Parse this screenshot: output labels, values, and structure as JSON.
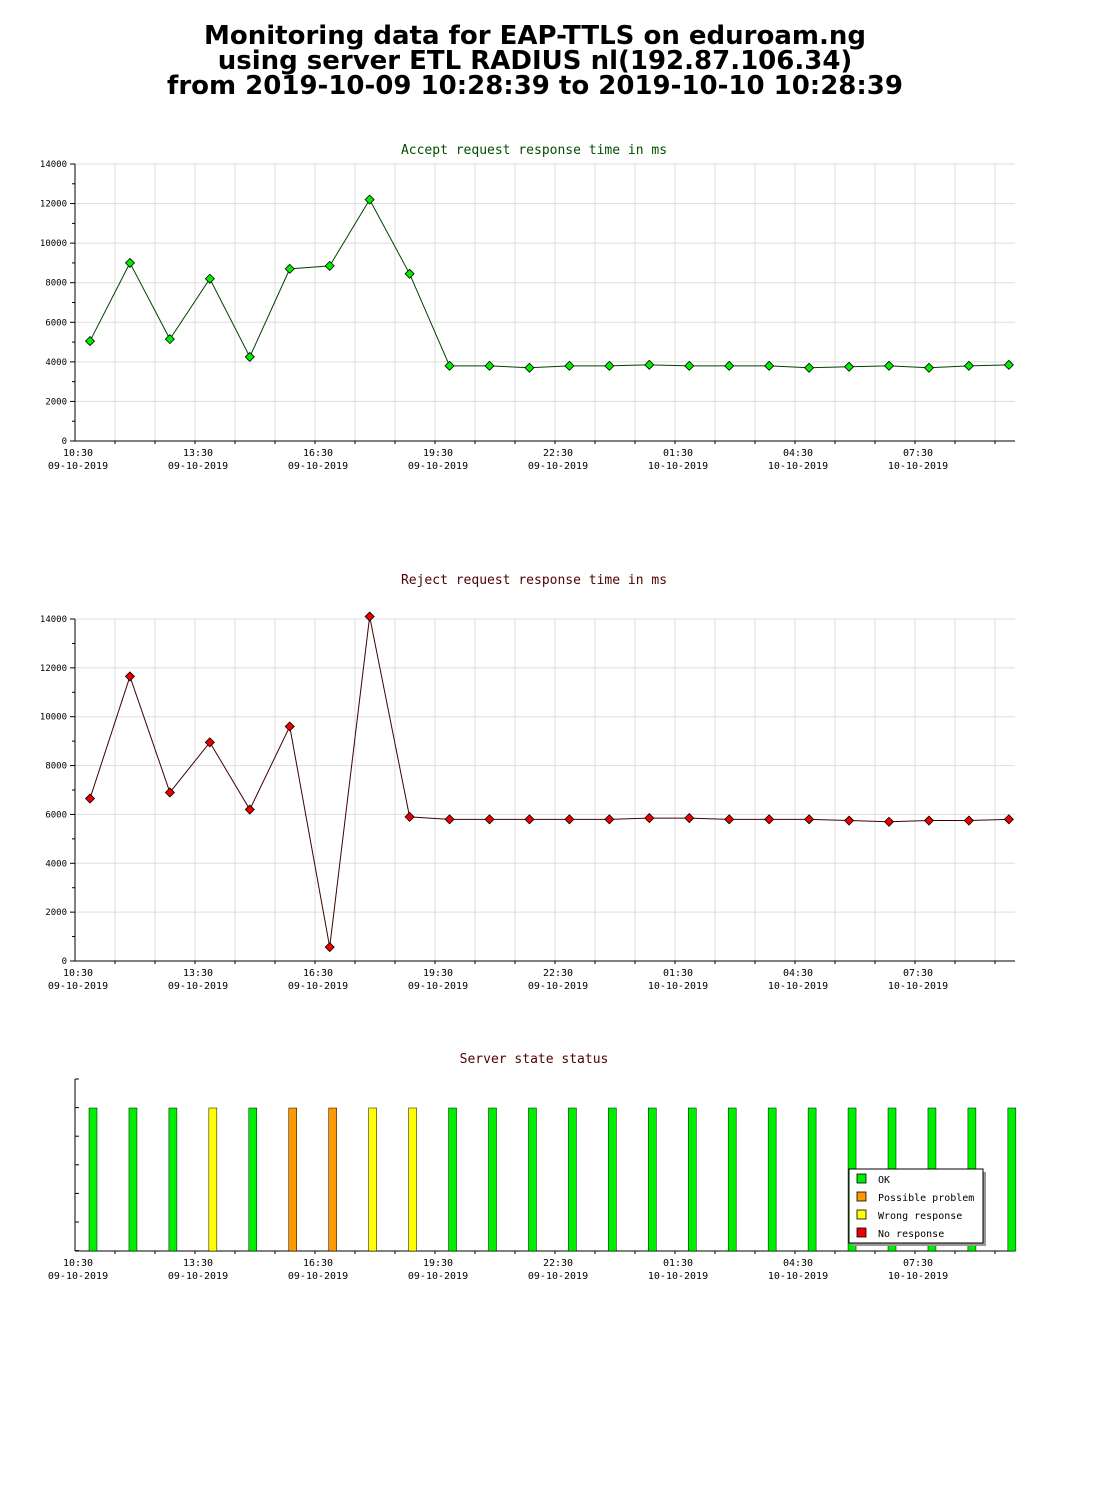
{
  "page_title": {
    "line1": "Monitoring data for EAP-TTLS on eduroam.ng",
    "line2": "using server ETL RADIUS nl(192.87.106.34)",
    "line3": "from 2019-10-09 10:28:39 to 2019-10-10 10:28:39"
  },
  "x_tick_labels": [
    {
      "time": "10:30",
      "date": "09-10-2019"
    },
    {
      "time": "13:30",
      "date": "09-10-2019"
    },
    {
      "time": "16:30",
      "date": "09-10-2019"
    },
    {
      "time": "19:30",
      "date": "09-10-2019"
    },
    {
      "time": "22:30",
      "date": "09-10-2019"
    },
    {
      "time": "01:30",
      "date": "10-10-2019"
    },
    {
      "time": "04:30",
      "date": "10-10-2019"
    },
    {
      "time": "07:30",
      "date": "10-10-2019"
    }
  ],
  "colors": {
    "accept_line": "#004000",
    "accept_marker": "#00ee00",
    "accept_title": "#005000",
    "reject_line": "#400000",
    "reject_marker": "#ee0000",
    "reject_title": "#500000",
    "status_title": "#500000",
    "ok": "#00ee00",
    "possible_problem": "#ff9900",
    "wrong_response": "#ffff00",
    "no_response": "#ee0000",
    "grid": "#dddddd"
  },
  "chart_data": [
    {
      "type": "line",
      "title": "Accept request response time in ms",
      "yticks": [
        0,
        2000,
        4000,
        6000,
        8000,
        10000,
        12000,
        14000
      ],
      "ylim": [
        0,
        14000
      ],
      "grid": true,
      "values": [
        5050,
        9000,
        5150,
        8200,
        4250,
        8700,
        8850,
        12200,
        8450,
        3800,
        3800,
        3700,
        3800,
        3800,
        3850,
        3800,
        3800,
        3800,
        3700,
        3750,
        3800,
        3700,
        3800,
        3850
      ]
    },
    {
      "type": "line",
      "title": "Reject request response time in ms",
      "yticks": [
        0,
        2000,
        4000,
        6000,
        8000,
        10000,
        12000,
        14000
      ],
      "ylim": [
        0,
        14000
      ],
      "grid": true,
      "values": [
        6650,
        11650,
        6900,
        8950,
        6200,
        9600,
        570,
        14100,
        5900,
        5800,
        5800,
        5800,
        5800,
        5800,
        5850,
        5850,
        5800,
        5800,
        5800,
        5750,
        5700,
        5750,
        5750,
        5800
      ]
    },
    {
      "type": "bar",
      "title": "Server state status",
      "legend": [
        "OK",
        "Possible problem",
        "Wrong response",
        "No response"
      ],
      "legend_position": "bottom-right",
      "states": [
        "OK",
        "OK",
        "OK",
        "Wrong response",
        "OK",
        "Possible problem",
        "Possible problem",
        "Wrong response",
        "Wrong response",
        "OK",
        "OK",
        "OK",
        "OK",
        "OK",
        "OK",
        "OK",
        "OK",
        "OK",
        "OK",
        "OK",
        "OK",
        "OK",
        "OK",
        "OK"
      ]
    }
  ]
}
